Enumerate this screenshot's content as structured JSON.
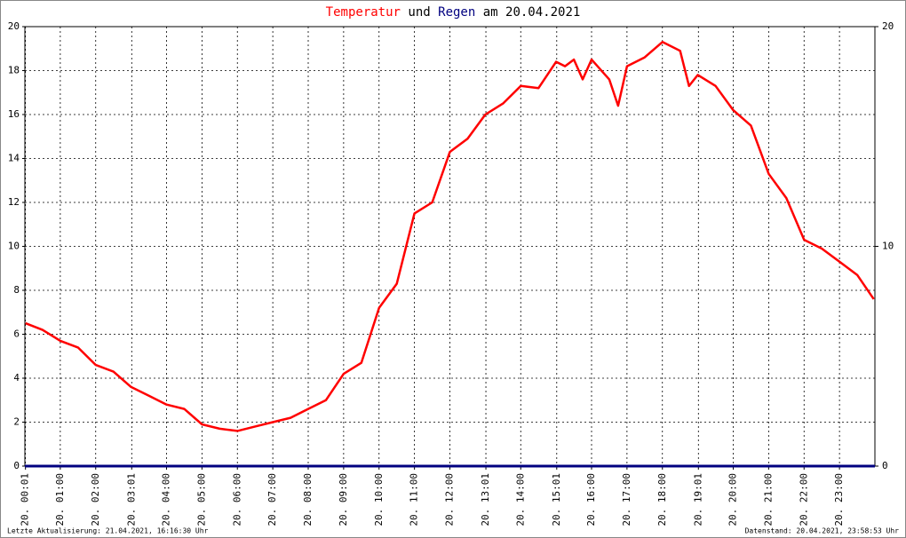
{
  "chart_data": {
    "type": "line",
    "title_parts": [
      {
        "text": "Temperatur",
        "color": "#ff0000"
      },
      {
        "text": "und",
        "color": "#000000"
      },
      {
        "text": "Regen",
        "color": "#000080"
      },
      {
        "text": "am 20.04.2021",
        "color": "#000000"
      }
    ],
    "xlim": [
      0,
      1440
    ],
    "xticks": [
      {
        "value": 1,
        "label": "20. 00:01"
      },
      {
        "value": 60,
        "label": "20. 01:00"
      },
      {
        "value": 120,
        "label": "20. 02:00"
      },
      {
        "value": 181,
        "label": "20. 03:01"
      },
      {
        "value": 240,
        "label": "20. 04:00"
      },
      {
        "value": 300,
        "label": "20. 05:00"
      },
      {
        "value": 360,
        "label": "20. 06:00"
      },
      {
        "value": 420,
        "label": "20. 07:00"
      },
      {
        "value": 480,
        "label": "20. 08:00"
      },
      {
        "value": 540,
        "label": "20. 09:00"
      },
      {
        "value": 600,
        "label": "20. 10:00"
      },
      {
        "value": 660,
        "label": "20. 11:00"
      },
      {
        "value": 720,
        "label": "20. 12:00"
      },
      {
        "value": 781,
        "label": "20. 13:01"
      },
      {
        "value": 840,
        "label": "20. 14:00"
      },
      {
        "value": 901,
        "label": "20. 15:01"
      },
      {
        "value": 960,
        "label": "20. 16:00"
      },
      {
        "value": 1020,
        "label": "20. 17:00"
      },
      {
        "value": 1080,
        "label": "20. 18:00"
      },
      {
        "value": 1141,
        "label": "20. 19:01"
      },
      {
        "value": 1200,
        "label": "20. 20:00"
      },
      {
        "value": 1260,
        "label": "20. 21:00"
      },
      {
        "value": 1320,
        "label": "20. 22:00"
      },
      {
        "value": 1380,
        "label": "20. 23:00"
      }
    ],
    "ylim": [
      0,
      20
    ],
    "yticks": [
      0,
      2,
      4,
      6,
      8,
      10,
      12,
      14,
      16,
      18,
      20
    ],
    "y2lim": [
      0,
      20
    ],
    "y2ticks": [
      0,
      10,
      20
    ],
    "grid": true,
    "series": [
      {
        "name": "Temperatur",
        "color": "#ff0000",
        "x": [
          1,
          30,
          60,
          90,
          120,
          150,
          180,
          210,
          240,
          270,
          300,
          330,
          360,
          390,
          420,
          450,
          480,
          510,
          525,
          540,
          570,
          600,
          630,
          660,
          690,
          720,
          750,
          780,
          810,
          840,
          870,
          900,
          915,
          930,
          945,
          960,
          990,
          1005,
          1020,
          1050,
          1080,
          1110,
          1125,
          1140,
          1170,
          1200,
          1230,
          1260,
          1290,
          1320,
          1350,
          1380,
          1410,
          1438
        ],
        "values": [
          6.5,
          6.2,
          5.7,
          5.4,
          4.6,
          4.3,
          3.6,
          3.2,
          2.8,
          2.6,
          1.9,
          1.7,
          1.6,
          1.8,
          2.0,
          2.2,
          2.6,
          3.0,
          3.6,
          4.2,
          4.7,
          7.2,
          8.3,
          11.5,
          12.0,
          14.3,
          14.9,
          16.0,
          16.5,
          17.3,
          17.2,
          18.4,
          18.2,
          18.5,
          17.6,
          18.5,
          17.6,
          16.4,
          18.2,
          18.6,
          19.3,
          18.9,
          17.3,
          17.8,
          17.3,
          16.2,
          15.5,
          13.3,
          12.2,
          10.3,
          9.9,
          9.3,
          8.7,
          7.6
        ]
      },
      {
        "name": "Regen",
        "color": "#000080",
        "axis": "y2",
        "x": [
          0,
          1440
        ],
        "values": [
          0,
          0
        ]
      }
    ],
    "footer_left": "Letzte Aktualisierung: 21.04.2021, 16:16:30 Uhr",
    "footer_right": "Datenstand: 20.04.2021, 23:58:53 Uhr"
  }
}
